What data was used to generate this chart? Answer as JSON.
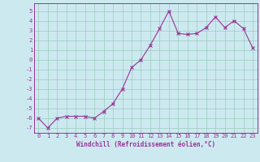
{
  "x": [
    0,
    1,
    2,
    3,
    4,
    5,
    6,
    7,
    8,
    9,
    10,
    11,
    12,
    13,
    14,
    15,
    16,
    17,
    18,
    19,
    20,
    21,
    22,
    23
  ],
  "y": [
    -6.0,
    -7.0,
    -6.0,
    -5.8,
    -5.8,
    -5.8,
    -6.0,
    -5.3,
    -4.5,
    -3.0,
    -0.8,
    0.0,
    1.5,
    3.2,
    5.0,
    2.7,
    2.6,
    2.7,
    3.3,
    4.4,
    3.3,
    4.0,
    3.2,
    1.2
  ],
  "line_color": "#993399",
  "marker": "x",
  "marker_size": 2.5,
  "line_width": 0.8,
  "background_color": "#cde9f0",
  "grid_color": "#99ccbb",
  "xlabel": "Windchill (Refroidissement éolien,°C)",
  "xlabel_fontsize": 5.5,
  "tick_fontsize": 5.0,
  "ylim": [
    -7.5,
    5.8
  ],
  "xlim": [
    -0.5,
    23.5
  ],
  "yticks": [
    -7,
    -6,
    -5,
    -4,
    -3,
    -2,
    -1,
    0,
    1,
    2,
    3,
    4,
    5
  ],
  "xticks": [
    0,
    1,
    2,
    3,
    4,
    5,
    6,
    7,
    8,
    9,
    10,
    11,
    12,
    13,
    14,
    15,
    16,
    17,
    18,
    19,
    20,
    21,
    22,
    23
  ]
}
